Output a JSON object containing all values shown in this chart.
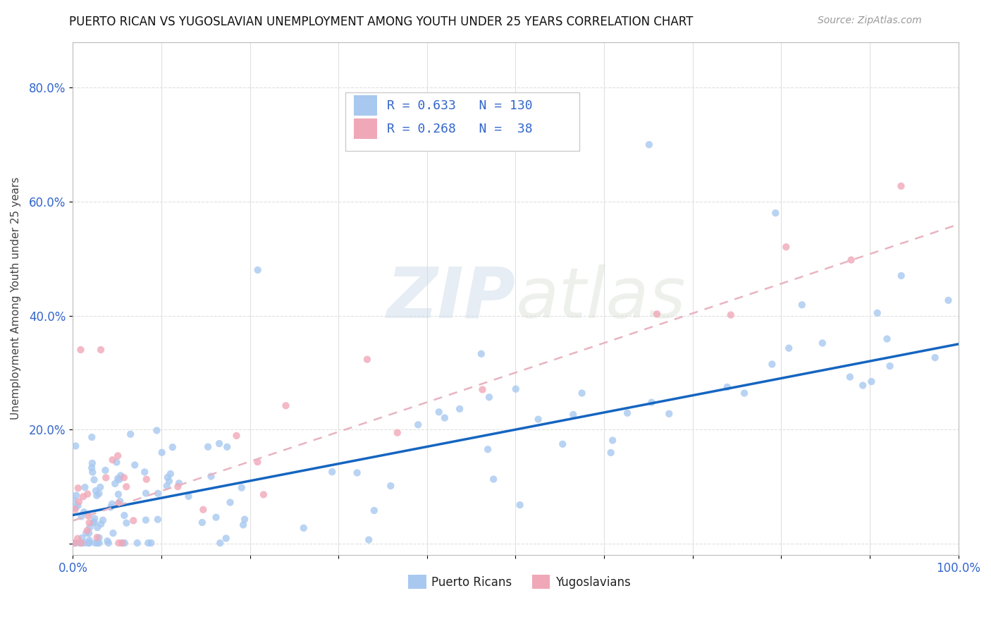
{
  "title": "PUERTO RICAN VS YUGOSLAVIAN UNEMPLOYMENT AMONG YOUTH UNDER 25 YEARS CORRELATION CHART",
  "source": "Source: ZipAtlas.com",
  "ylabel": "Unemployment Among Youth under 25 years",
  "xlim": [
    0.0,
    1.0
  ],
  "ylim": [
    -0.02,
    0.88
  ],
  "xticks": [
    0.0,
    0.1,
    0.2,
    0.3,
    0.4,
    0.5,
    0.6,
    0.7,
    0.8,
    0.9,
    1.0
  ],
  "xtick_labels": [
    "0.0%",
    "",
    "",
    "",
    "",
    "",
    "",
    "",
    "",
    "",
    "100.0%"
  ],
  "yticks": [
    0.0,
    0.2,
    0.4,
    0.6,
    0.8
  ],
  "ytick_labels": [
    "",
    "20.0%",
    "40.0%",
    "60.0%",
    "80.0%"
  ],
  "pr_R": 0.633,
  "pr_N": 130,
  "yu_R": 0.268,
  "yu_N": 38,
  "pr_color": "#a8c8f0",
  "yu_color": "#f0a8b8",
  "pr_line_color": "#1565c0",
  "yu_line_color": "#e8b4c0",
  "background_color": "#ffffff",
  "grid_color": "#e0e0e0",
  "title_fontsize": 12,
  "legend_fontsize": 13,
  "pr_line_intercept": 0.05,
  "pr_line_slope": 0.3,
  "yu_line_intercept": 0.04,
  "yu_line_slope": 0.52
}
